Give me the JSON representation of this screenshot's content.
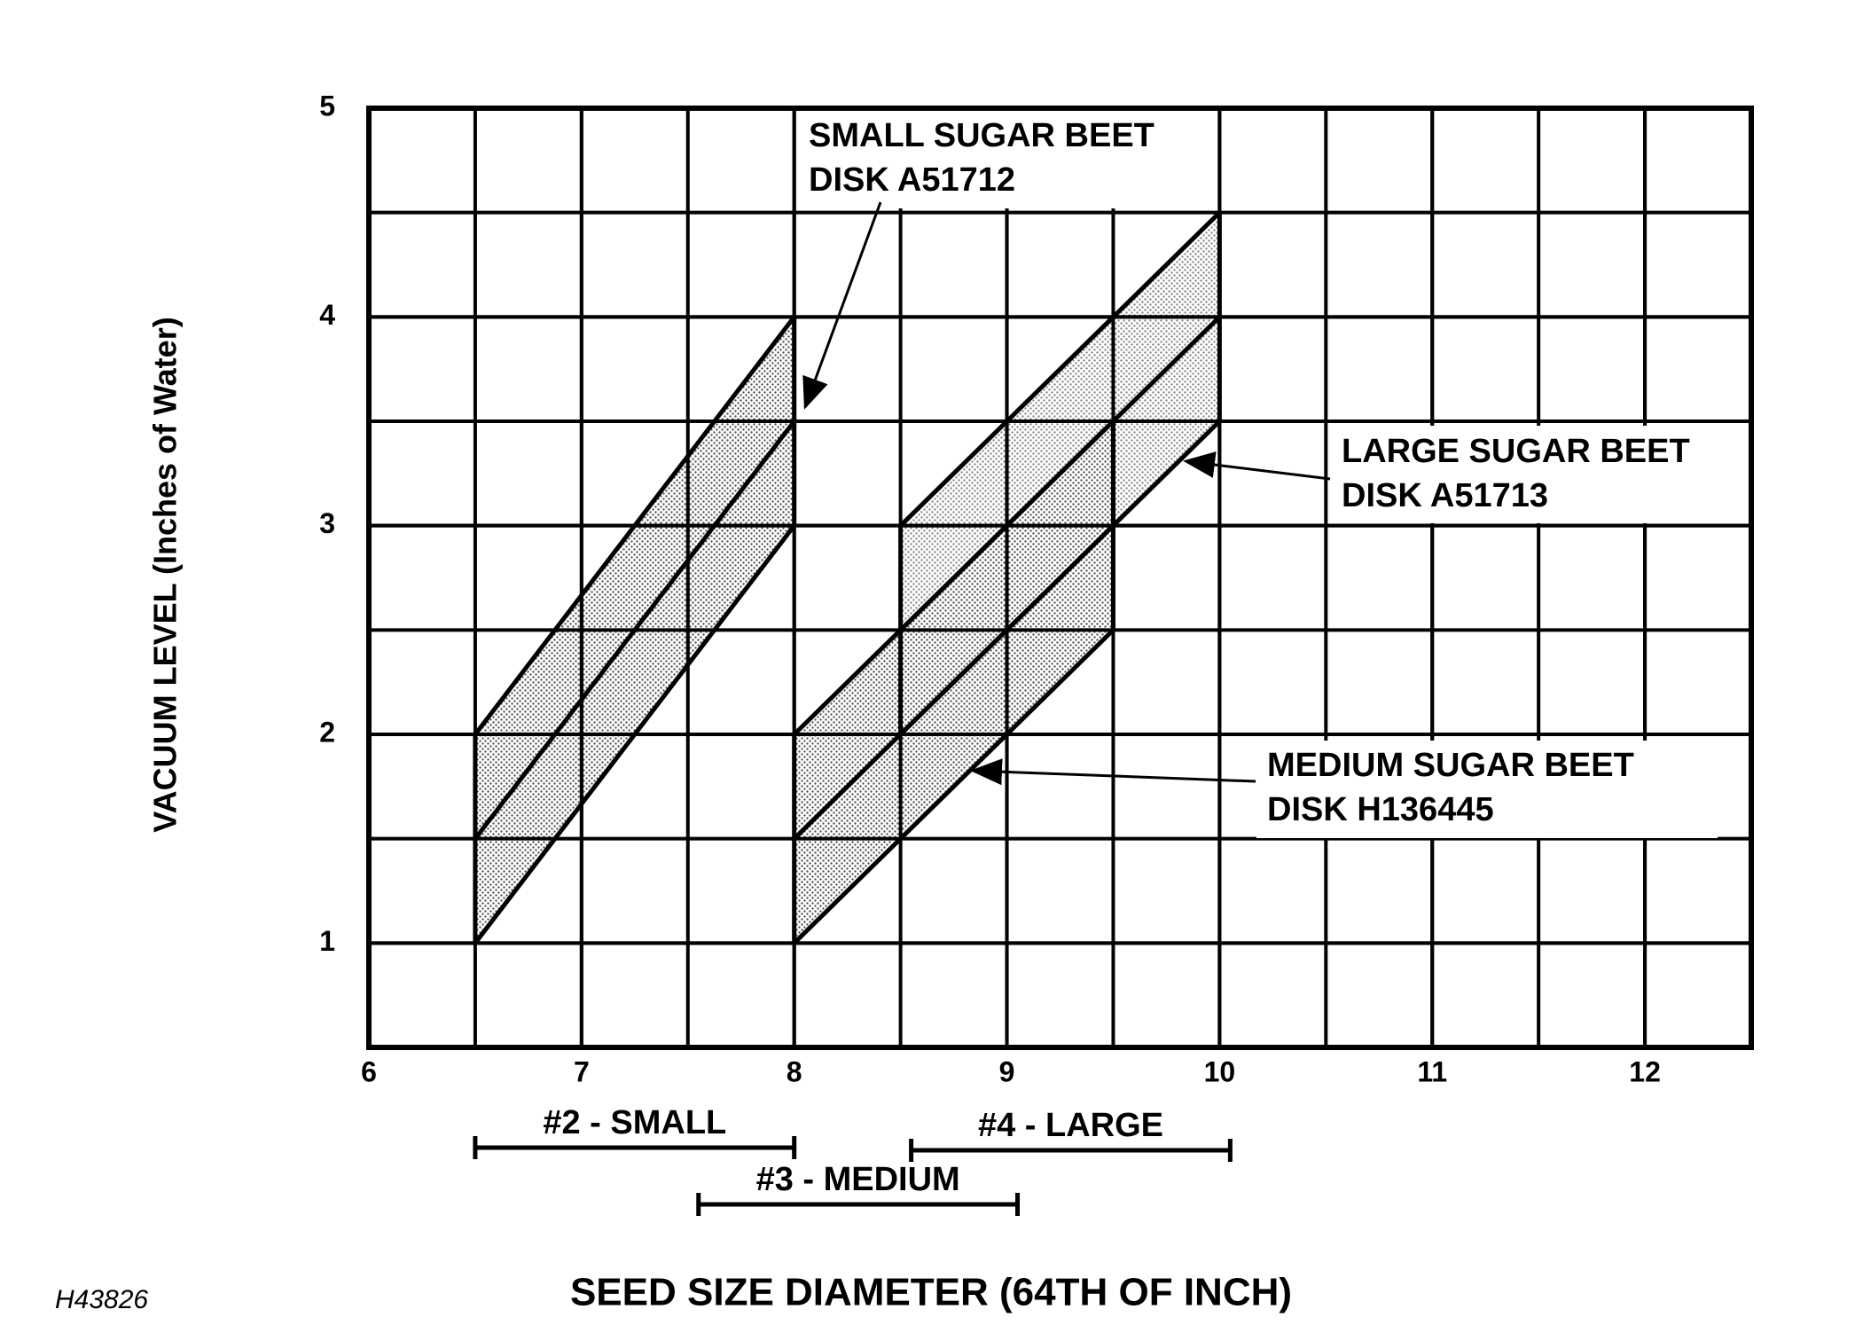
{
  "chart_data": {
    "type": "band",
    "x_label": "SEED SIZE DIAMETER (64TH OF INCH)",
    "y_label": "VACUUM LEVEL (Inches of Water)",
    "figure_id": "H43826",
    "xlim": [
      6,
      12.5
    ],
    "ylim": [
      0.5,
      5
    ],
    "xticks": [
      6,
      7,
      8,
      9,
      10,
      11,
      12
    ],
    "yticks": [
      1,
      2,
      3,
      4,
      5
    ],
    "minor_grid_step": 0.5,
    "grid": true,
    "series": [
      {
        "label": [
          "SMALL SUGAR BEET",
          "DISK A51712"
        ],
        "x": [
          6.5,
          8
        ],
        "lower": [
          1,
          3
        ],
        "mid": [
          1.5,
          3.5
        ],
        "upper": [
          2,
          4
        ]
      },
      {
        "label": [
          "MEDIUM SUGAR BEET",
          "DISK H136445"
        ],
        "x": [
          8,
          9.5
        ],
        "lower": [
          1,
          2.5
        ],
        "mid": [
          1.5,
          3
        ],
        "upper": [
          2,
          3.5
        ]
      },
      {
        "label": [
          "LARGE SUGAR BEET",
          "DISK A51713"
        ],
        "x": [
          8.5,
          10
        ],
        "lower": [
          2,
          3.5
        ],
        "mid": [
          2.5,
          4
        ],
        "upper": [
          3,
          4.5
        ]
      }
    ],
    "ranges": [
      {
        "label": "#2 - SMALL",
        "start": 6.5,
        "end": 8
      },
      {
        "label": "#3 - MEDIUM",
        "start": 7.55,
        "end": 9.05
      },
      {
        "label": "#4 - LARGE",
        "start": 8.55,
        "end": 10.05
      }
    ]
  }
}
